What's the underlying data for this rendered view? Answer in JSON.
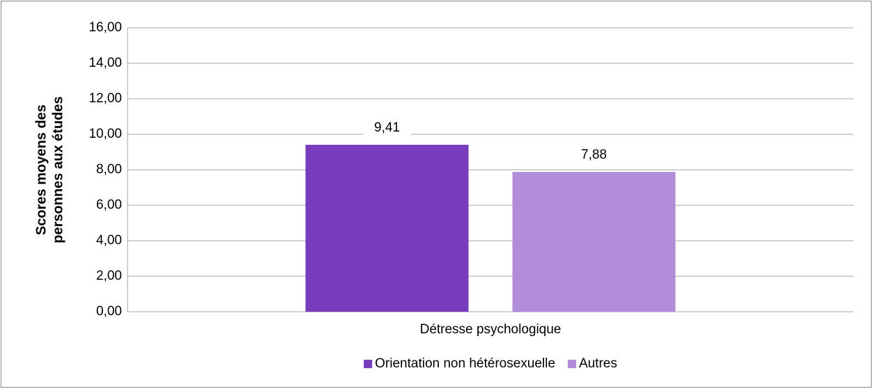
{
  "chart_data": {
    "type": "bar",
    "y_axis_label": [
      "Scores moyens des",
      "personnes aux études"
    ],
    "categories": [
      "Détresse psychologique"
    ],
    "series": [
      {
        "name": "Orientation non hétérosexuelle",
        "color": "#783cbc",
        "values": [
          9.41
        ],
        "value_labels": [
          "9,41"
        ]
      },
      {
        "name": "Autres",
        "color": "#b08cd9",
        "values": [
          7.88
        ],
        "value_labels": [
          "7,88"
        ]
      }
    ],
    "ylim": [
      0,
      16
    ],
    "yticks": [
      {
        "value": 0,
        "label": "0,00"
      },
      {
        "value": 2,
        "label": "2,00"
      },
      {
        "value": 4,
        "label": "4,00"
      },
      {
        "value": 6,
        "label": "6,00"
      },
      {
        "value": 8,
        "label": "8,00"
      },
      {
        "value": 10,
        "label": "10,00"
      },
      {
        "value": 12,
        "label": "12,00"
      },
      {
        "value": 14,
        "label": "14,00"
      },
      {
        "value": 16,
        "label": "16,00"
      }
    ],
    "grid": true,
    "legend": "bottom"
  }
}
